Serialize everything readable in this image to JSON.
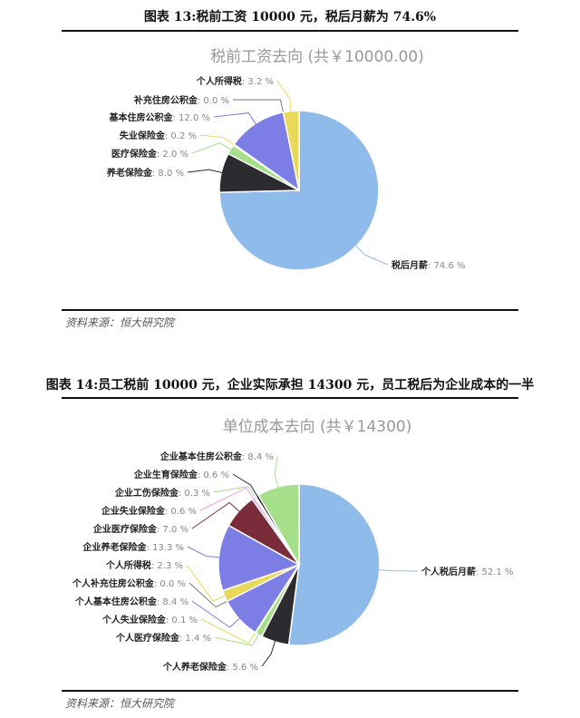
{
  "figures": [
    {
      "caption": "图表 13:税前工资 10000 元，税后月薪为 74.6%",
      "source": "资料来源：恒大研究院"
    },
    {
      "caption": "图表 14:员工税前 10000 元，企业实际承担 14300 元，员工税后为企业成本的一半",
      "source": "资料来源：恒大研究院"
    }
  ],
  "chart_data": [
    {
      "type": "pie",
      "title": "税前工资去向 (共￥10000.00)",
      "unit": "%",
      "slices": [
        {
          "label": "税后月薪",
          "value": 74.6,
          "color": "#8fbbea"
        },
        {
          "label": "养老保险金",
          "value": 8.0,
          "color": "#2b2b30"
        },
        {
          "label": "医疗保险金",
          "value": 2.0,
          "color": "#a6df8a"
        },
        {
          "label": "失业保险金",
          "value": 0.2,
          "color": "#e8d95a"
        },
        {
          "label": "基本住房公积金",
          "value": 12.0,
          "color": "#7c7ee6"
        },
        {
          "label": "补充住房公积金",
          "value": 0.0,
          "color": "#7b2c3a"
        },
        {
          "label": "个人所得税",
          "value": 3.2,
          "color": "#e8d95a"
        }
      ]
    },
    {
      "type": "pie",
      "title": "单位成本去向 (共￥14300)",
      "unit": "%",
      "slices": [
        {
          "label": "个人税后月薪",
          "value": 52.1,
          "color": "#8fbbea"
        },
        {
          "label": "个人养老保险金",
          "value": 5.6,
          "color": "#2b2b30"
        },
        {
          "label": "个人医疗保险金",
          "value": 1.4,
          "color": "#a6df8a"
        },
        {
          "label": "个人失业保险金",
          "value": 0.1,
          "color": "#e8d95a"
        },
        {
          "label": "个人基本住房公积金",
          "value": 8.4,
          "color": "#7c7ee6"
        },
        {
          "label": "个人补充住房公积金",
          "value": 0.0,
          "color": "#7b2c3a"
        },
        {
          "label": "个人所得税",
          "value": 2.3,
          "color": "#e8d95a"
        },
        {
          "label": "企业养老保险金",
          "value": 13.3,
          "color": "#7c7ee6"
        },
        {
          "label": "企业医疗保险金",
          "value": 7.0,
          "color": "#7b2c3a"
        },
        {
          "label": "企业失业保险金",
          "value": 0.6,
          "color": "#e8a0e8"
        },
        {
          "label": "企业工伤保险金",
          "value": 0.3,
          "color": "#a6df8a"
        },
        {
          "label": "企业生育保险金",
          "value": 0.6,
          "color": "#2b2b30"
        },
        {
          "label": "企业基本住房公积金",
          "value": 8.4,
          "color": "#a6df8a"
        }
      ]
    }
  ]
}
